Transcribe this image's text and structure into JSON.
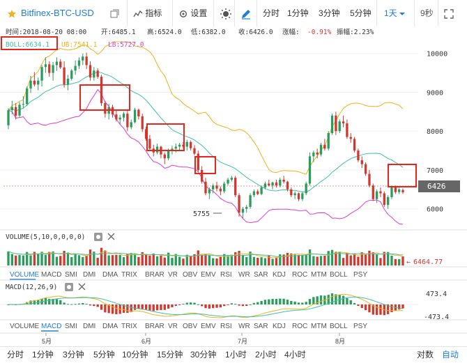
{
  "toolbar": {
    "symbol": "Bitfinex-BTC-USD",
    "indicators": "指标",
    "settings": "设置",
    "periods": [
      "分时",
      "1分钟",
      "3分钟",
      "5分钟"
    ],
    "active_period": "1天",
    "countdown": "9秒"
  },
  "info_line": {
    "time": "时间:2018-08-20 08:00",
    "open": "开:6485.1",
    "high": "高:6524.0",
    "low": "低:6382.0",
    "close": "收:6426.0",
    "change_label": "涨幅:",
    "change_value": "-0.91%",
    "amplitude": "振幅:2.23%"
  },
  "boll_line": {
    "boll": "BOLL:6634.1",
    "ub": "UB:7541.1",
    "lb": "LB:5727.0"
  },
  "volume_panel": {
    "title": "VOLUME(5,10,0,0,0,0)",
    "last_value": "6464.77"
  },
  "macd_panel": {
    "title": "MACD(12,26,9)",
    "top_label": "473.4",
    "bottom_label": "-473.4"
  },
  "indicator_tabs": [
    "VOLUME",
    "MACD",
    "SMI",
    "DMI",
    "DMA",
    "TRIX",
    "BRAR",
    "VR",
    "OBV",
    "EMV",
    "RSI",
    "WR",
    "SAR",
    "KDJ",
    "ROC",
    "MTM",
    "BOLL",
    "PSY"
  ],
  "tabs_row1_active": "VOLUME",
  "tabs_row2_active": "MACD",
  "x_months": [
    "5月",
    "6月",
    "7月",
    "8月"
  ],
  "bottombar": {
    "periods": [
      "分时",
      "1分钟",
      "3分钟",
      "5分钟",
      "10分钟",
      "15分钟",
      "30分钟",
      "1小时",
      "2小时",
      "4小时"
    ],
    "log": "对数",
    "auto": "自动"
  },
  "colors": {
    "up": "#2a9d5c",
    "down": "#d0392f",
    "accent": "#1e7ed8",
    "highlight": "#e8241c",
    "ub": "#f0b31c",
    "mid": "#3cc3a8",
    "lb": "#dd3dd0"
  },
  "chart_data": {
    "type": "candlestick",
    "y_ticks": [
      10000,
      9000,
      8000,
      7000,
      6000
    ],
    "y_range": [
      5600,
      10300
    ],
    "last_price": "6426",
    "low_annotation": "5755",
    "ohlc": [
      [
        8150,
        8590,
        8050,
        8540
      ],
      [
        8540,
        8780,
        8430,
        8620
      ],
      [
        8620,
        8720,
        8300,
        8400
      ],
      [
        8400,
        8750,
        8350,
        8680
      ],
      [
        8680,
        8900,
        8600,
        8700
      ],
      [
        8700,
        9150,
        8650,
        9100
      ],
      [
        9100,
        9420,
        8980,
        9300
      ],
      [
        9300,
        9520,
        9150,
        9200
      ],
      [
        9200,
        9380,
        9050,
        9300
      ],
      [
        9300,
        9700,
        9150,
        9650
      ],
      [
        9650,
        9900,
        9500,
        9720
      ],
      [
        9720,
        9800,
        9400,
        9500
      ],
      [
        9500,
        9780,
        9300,
        9700
      ],
      [
        9700,
        9900,
        9550,
        9790
      ],
      [
        9790,
        9850,
        9600,
        9640
      ],
      [
        9640,
        9800,
        9120,
        9200
      ],
      [
        9200,
        9450,
        9050,
        9350
      ],
      [
        9350,
        9600,
        9300,
        9560
      ],
      [
        9560,
        9820,
        9450,
        9680
      ],
      [
        9680,
        9900,
        9600,
        9820
      ],
      [
        9820,
        10000,
        9700,
        9920
      ],
      [
        9920,
        10020,
        9600,
        9700
      ],
      [
        9700,
        9800,
        9300,
        9380
      ],
      [
        9380,
        9650,
        9300,
        9560
      ],
      [
        9560,
        9620,
        9350,
        9400
      ],
      [
        9400,
        9450,
        8650,
        8720
      ],
      [
        8720,
        8780,
        8350,
        8450
      ],
      [
        8450,
        8700,
        8300,
        8620
      ],
      [
        8620,
        8680,
        8350,
        8430
      ],
      [
        8430,
        8550,
        8250,
        8300
      ],
      [
        8300,
        8420,
        8180,
        8350
      ],
      [
        8350,
        8500,
        8250,
        8450
      ],
      [
        8450,
        8520,
        8000,
        8100
      ],
      [
        8100,
        8300,
        8050,
        8230
      ],
      [
        8230,
        8600,
        8200,
        8550
      ],
      [
        8550,
        8580,
        8300,
        8380
      ],
      [
        8380,
        8450,
        7980,
        8050
      ],
      [
        8050,
        8120,
        7750,
        7800
      ],
      [
        7800,
        7900,
        7500,
        7550
      ],
      [
        7550,
        7650,
        7350,
        7450
      ],
      [
        7450,
        7680,
        7400,
        7600
      ],
      [
        7600,
        7620,
        7300,
        7400
      ],
      [
        7400,
        7450,
        7150,
        7300
      ],
      [
        7300,
        7550,
        7250,
        7500
      ],
      [
        7500,
        7620,
        7400,
        7550
      ],
      [
        7550,
        7680,
        7450,
        7600
      ],
      [
        7600,
        7700,
        7500,
        7650
      ],
      [
        7650,
        7720,
        7550,
        7600
      ],
      [
        7600,
        7780,
        7500,
        7720
      ],
      [
        7720,
        7760,
        7500,
        7560
      ],
      [
        7560,
        7640,
        7380,
        7420
      ],
      [
        7420,
        7500,
        6950,
        7000
      ],
      [
        7000,
        7100,
        6650,
        6700
      ],
      [
        6700,
        6800,
        6350,
        6400
      ],
      [
        6400,
        6550,
        6250,
        6500
      ],
      [
        6500,
        6650,
        6400,
        6600
      ],
      [
        6600,
        6700,
        6450,
        6520
      ],
      [
        6520,
        6580,
        6350,
        6450
      ],
      [
        6450,
        6700,
        6400,
        6650
      ],
      [
        6650,
        6800,
        6600,
        6750
      ],
      [
        6750,
        6850,
        6700,
        6800
      ],
      [
        6800,
        6850,
        6300,
        6350
      ],
      [
        6350,
        6400,
        5800,
        5900
      ],
      [
        5900,
        6050,
        5755,
        6000
      ],
      [
        6000,
        6100,
        5900,
        6050
      ],
      [
        6050,
        6400,
        6000,
        6350
      ],
      [
        6350,
        6500,
        6300,
        6450
      ],
      [
        6450,
        6500,
        6350,
        6380
      ],
      [
        6380,
        6600,
        6350,
        6550
      ],
      [
        6550,
        6700,
        6500,
        6650
      ],
      [
        6650,
        6750,
        6580,
        6600
      ],
      [
        6600,
        6700,
        6500,
        6680
      ],
      [
        6680,
        6750,
        6550,
        6600
      ],
      [
        6600,
        6800,
        6550,
        6750
      ],
      [
        6750,
        6850,
        6650,
        6700
      ],
      [
        6700,
        6720,
        6450,
        6500
      ],
      [
        6500,
        6550,
        6300,
        6350
      ],
      [
        6350,
        6450,
        6250,
        6400
      ],
      [
        6400,
        6420,
        6200,
        6250
      ],
      [
        6250,
        6450,
        6200,
        6400
      ],
      [
        6400,
        6700,
        6350,
        6650
      ],
      [
        6650,
        7450,
        6600,
        7350
      ],
      [
        7350,
        7500,
        7200,
        7450
      ],
      [
        7450,
        7550,
        7300,
        7400
      ],
      [
        7400,
        7700,
        7350,
        7650
      ],
      [
        7650,
        7800,
        7500,
        7550
      ],
      [
        7550,
        8000,
        7500,
        7950
      ],
      [
        7950,
        8450,
        7900,
        8400
      ],
      [
        8400,
        8500,
        7900,
        8000
      ],
      [
        8000,
        8300,
        7950,
        8250
      ],
      [
        8250,
        8400,
        8100,
        8200
      ],
      [
        8200,
        8300,
        7800,
        7850
      ],
      [
        7850,
        7950,
        7700,
        7800
      ],
      [
        7800,
        7850,
        7450,
        7500
      ],
      [
        7500,
        7550,
        7200,
        7250
      ],
      [
        7250,
        7350,
        7050,
        7150
      ],
      [
        7150,
        7200,
        6850,
        6900
      ],
      [
        6900,
        7000,
        6550,
        6600
      ],
      [
        6600,
        6650,
        6200,
        6250
      ],
      [
        6250,
        6500,
        6150,
        6450
      ],
      [
        6450,
        6550,
        6300,
        6400
      ],
      [
        6400,
        6450,
        6050,
        6100
      ],
      [
        6100,
        6350,
        6000,
        6300
      ],
      [
        6300,
        6600,
        6250,
        6550
      ],
      [
        6550,
        6600,
        6380,
        6430
      ],
      [
        6430,
        6550,
        6380,
        6500
      ],
      [
        6485.1,
        6524,
        6382,
        6426
      ]
    ],
    "boll_last": {
      "mid": 6634.1,
      "ub": 7541.1,
      "lb": 5727.0
    },
    "volume": {
      "y_max": 12000,
      "last": 6464.77
    },
    "macd": {
      "range": [
        -473.4,
        473.4
      ]
    }
  }
}
